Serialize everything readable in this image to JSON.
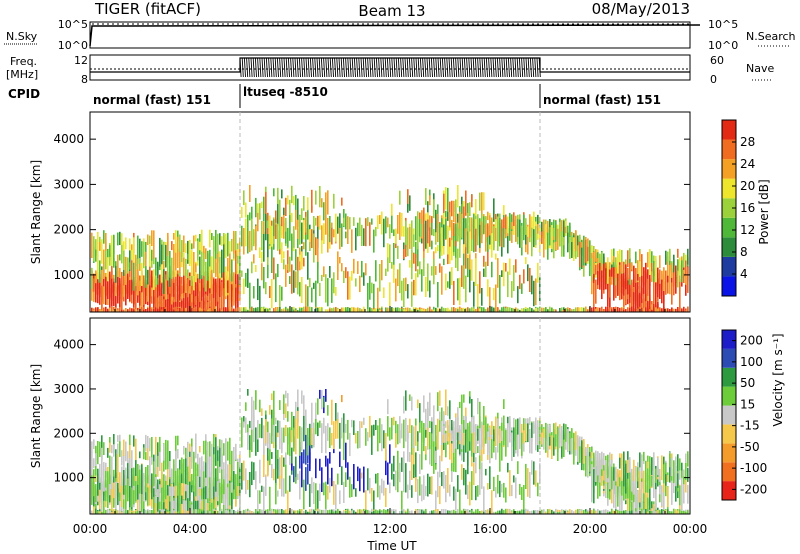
{
  "header": {
    "radar": "TIGER (fitACF)",
    "beam": "Beam 13",
    "date": "08/May/2013"
  },
  "panels": {
    "nsky": {
      "left_label": "N.Sky",
      "right_label": "N.Search",
      "ticks": [
        "10^5",
        "10^0"
      ]
    },
    "freq": {
      "left_label": "Freq.",
      "unit": "[MHz]",
      "right_label": "Nave",
      "left_ticks": [
        "12",
        "8"
      ],
      "right_ticks": [
        "60",
        "0"
      ]
    },
    "cpid": {
      "label": "CPID",
      "modes": [
        {
          "name": "normal (fast) 151",
          "start_hour": 0,
          "end_hour": 6
        },
        {
          "name": "ltuseq -8510",
          "start_hour": 6,
          "end_hour": 18
        },
        {
          "name": "normal (fast) 151",
          "start_hour": 18,
          "end_hour": 24
        }
      ]
    }
  },
  "colors": {
    "power": [
      "#0a14e6",
      "#1e3ca0",
      "#2c8c3c",
      "#4fb838",
      "#9bd13a",
      "#eee62c",
      "#f4a024",
      "#f06c20",
      "#e32a14"
    ],
    "velocity": [
      "#e8241a",
      "#f07020",
      "#f39c2c",
      "#f5c84c",
      "#c8c8c8",
      "#6ccc3a",
      "#2e9a40",
      "#2c4cb4",
      "#1c1cc8"
    ]
  },
  "chart_data": [
    {
      "type": "heatmap",
      "parameter": "Power",
      "ylabel": "Slant Range [km]",
      "xlabel": "",
      "ylim": [
        180,
        4600
      ],
      "xlim": [
        0,
        24
      ],
      "yticks": [
        1000,
        2000,
        3000,
        4000
      ],
      "xticks": [
        "00:00",
        "04:00",
        "08:00",
        "12:00",
        "16:00",
        "20:00",
        "00:00"
      ],
      "colorbar": {
        "label": "Power [dB]",
        "ticks": [
          4,
          8,
          12,
          16,
          20,
          24,
          28
        ],
        "range": [
          0,
          32
        ]
      }
    },
    {
      "type": "heatmap",
      "parameter": "Velocity",
      "ylabel": "Slant Range [km]",
      "xlabel": "Time UT",
      "ylim": [
        180,
        4600
      ],
      "xlim": [
        0,
        24
      ],
      "yticks": [
        1000,
        2000,
        3000,
        4000
      ],
      "xticks": [
        "00:00",
        "04:00",
        "08:00",
        "12:00",
        "16:00",
        "20:00",
        "00:00"
      ],
      "colorbar": {
        "label": "Velocity [m s⁻¹]",
        "ticks": [
          -200,
          -100,
          -50,
          -15,
          15,
          50,
          100,
          200
        ]
      }
    }
  ]
}
